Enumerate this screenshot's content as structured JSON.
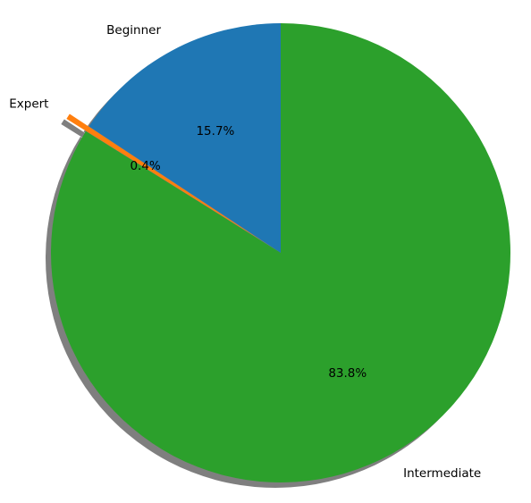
{
  "chart_data": {
    "type": "pie",
    "title": "",
    "categories": [
      "Beginner",
      "Expert",
      "Intermediate"
    ],
    "values": [
      15.7,
      0.4,
      83.8
    ],
    "labels": [
      "15.7%",
      "0.4%",
      "83.8%"
    ],
    "colors": [
      "#1f77b4",
      "#ff7f0e",
      "#2ca02c"
    ],
    "start_angle_deg": 90,
    "direction": "counterclockwise",
    "exploded": [
      "Expert"
    ],
    "shadow": true,
    "legend": "none"
  }
}
